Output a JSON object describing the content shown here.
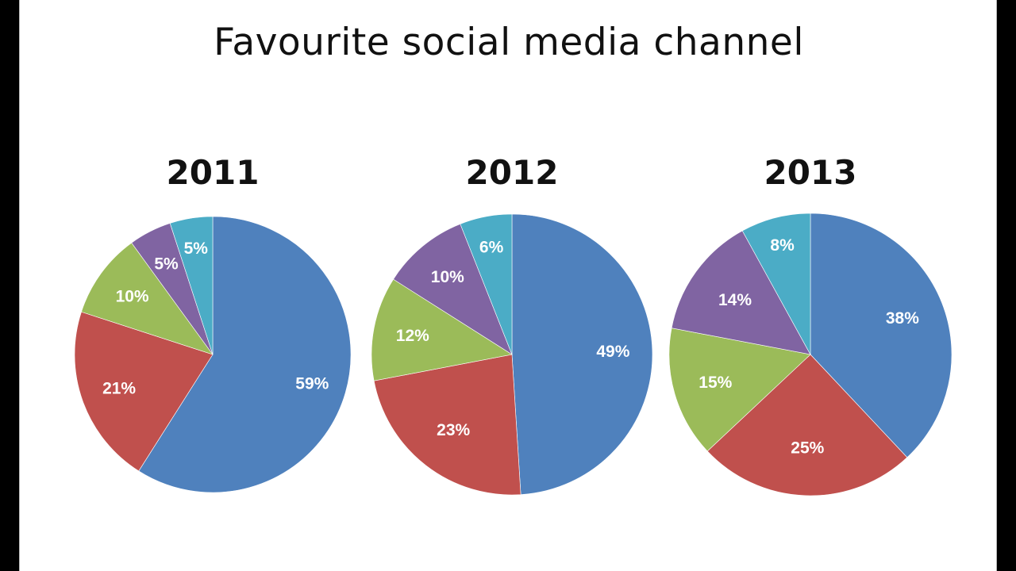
{
  "title": "Favourite social media channel",
  "colors": [
    "#4f81bd",
    "#c0504d",
    "#9bbb59",
    "#8064a2",
    "#4bacc6"
  ],
  "chart_data": [
    {
      "type": "pie",
      "title": "2011",
      "values": [
        59,
        21,
        10,
        5,
        5
      ],
      "labels": [
        "59%",
        "21%",
        "10%",
        "5%",
        "5%"
      ],
      "start_angle_deg": 0,
      "direction": "clockwise"
    },
    {
      "type": "pie",
      "title": "2012",
      "values": [
        49,
        23,
        12,
        10,
        6
      ],
      "labels": [
        "49%",
        "23%",
        "12%",
        "10%",
        "6%"
      ],
      "start_angle_deg": 0,
      "direction": "clockwise"
    },
    {
      "type": "pie",
      "title": "2013",
      "values": [
        38,
        25,
        15,
        14,
        8
      ],
      "labels": [
        "38%",
        "25%",
        "15%",
        "14%",
        "8%"
      ],
      "start_angle_deg": 0,
      "direction": "clockwise"
    }
  ]
}
